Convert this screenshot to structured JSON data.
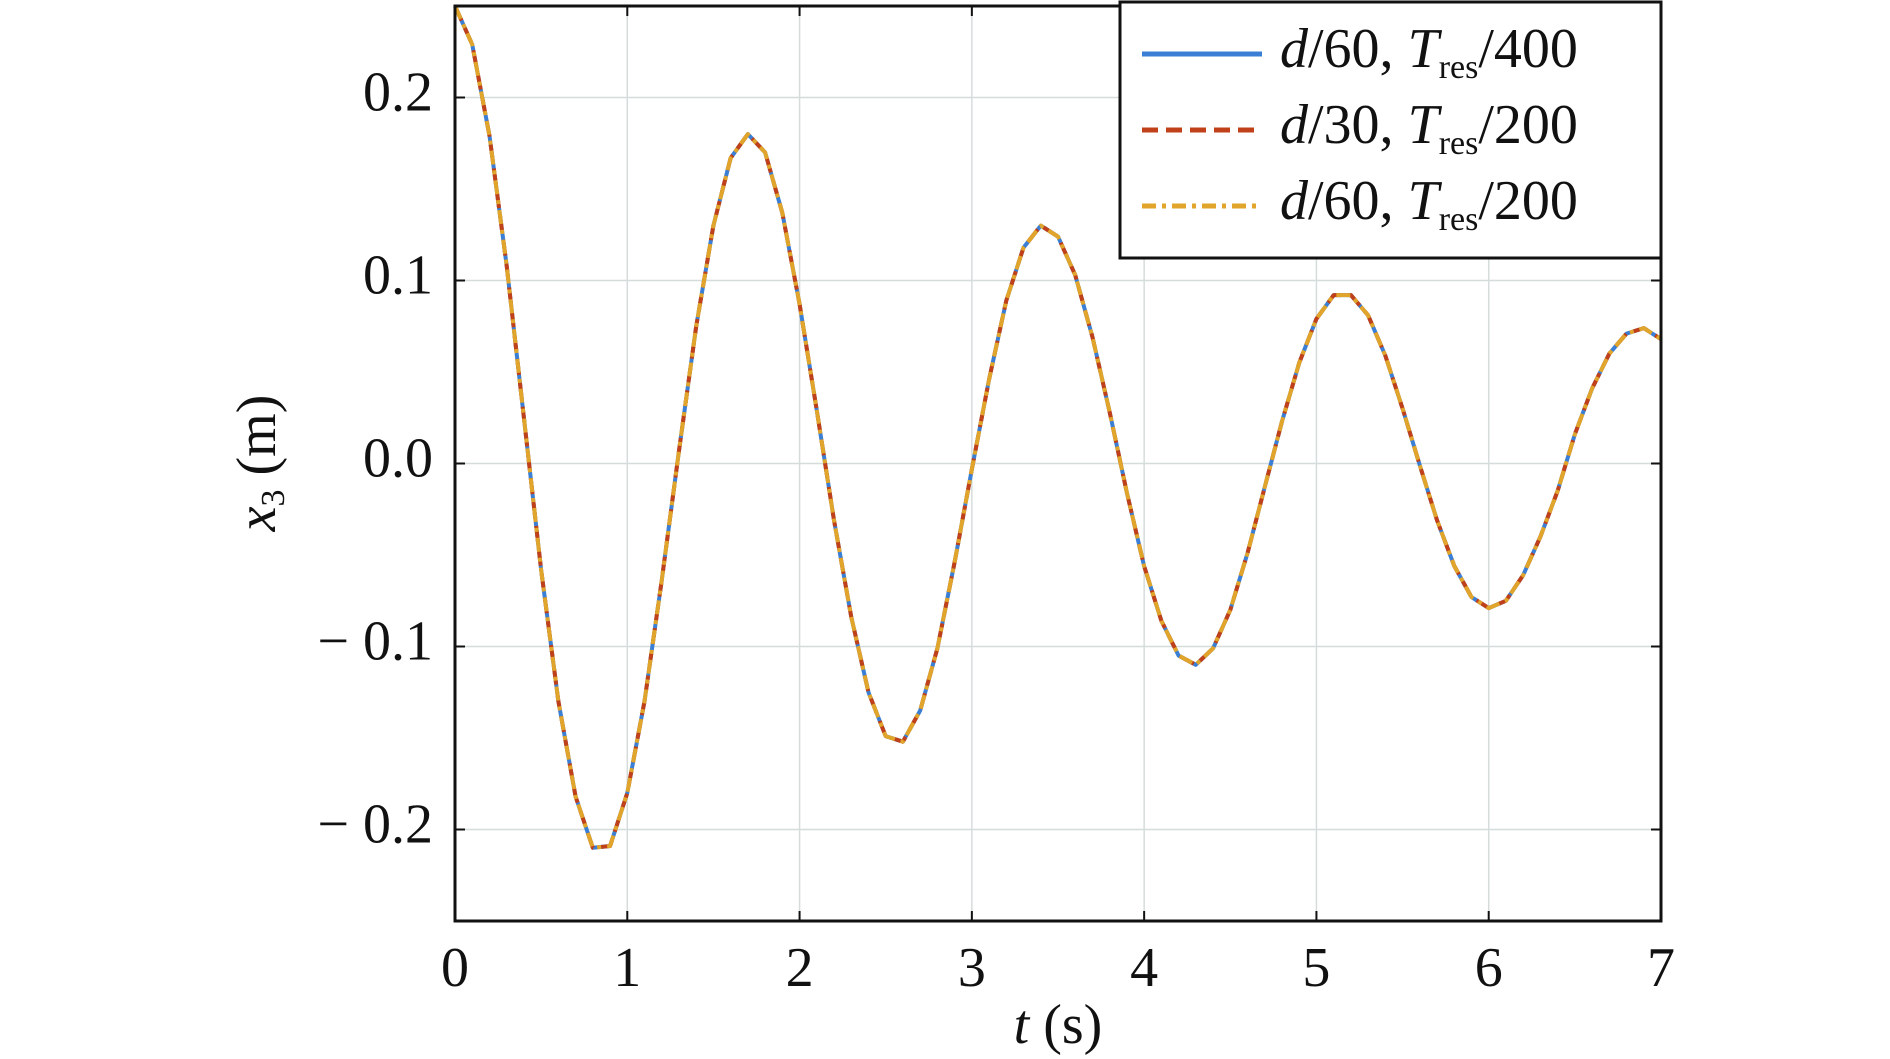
{
  "chart_data": {
    "type": "line",
    "x_label": "t (s)",
    "y_label": "x3 (m)",
    "x": [
      0,
      0.1,
      0.2,
      0.3,
      0.4,
      0.5,
      0.6,
      0.7,
      0.8,
      0.9,
      1,
      1.1,
      1.2,
      1.3,
      1.4,
      1.5,
      1.6,
      1.7,
      1.8,
      1.9,
      2,
      2.1,
      2.2,
      2.3,
      2.4,
      2.5,
      2.6,
      2.7,
      2.8,
      2.9,
      3,
      3.1,
      3.2,
      3.3,
      3.4,
      3.5,
      3.6,
      3.7,
      3.8,
      3.9,
      4,
      4.1,
      4.2,
      4.3,
      4.4,
      4.5,
      4.6,
      4.7,
      4.8,
      4.9,
      5,
      5.1,
      5.2,
      5.3,
      5.4,
      5.5,
      5.6,
      5.7,
      5.8,
      5.9,
      6,
      6.1,
      6.2,
      6.3,
      6.4,
      6.5,
      6.6,
      6.7,
      6.8,
      6.9,
      7
    ],
    "series": [
      {
        "name": "d/60, Tres/400",
        "color": "#3a7fd5",
        "dash": "solid",
        "values": [
          0.25,
          0.229,
          0.179,
          0.108,
          0.025,
          -0.058,
          -0.13,
          -0.182,
          -0.21,
          -0.209,
          -0.18,
          -0.13,
          -0.064,
          0.007,
          0.075,
          0.13,
          0.167,
          0.18,
          0.17,
          0.137,
          0.087,
          0.029,
          -0.031,
          -0.084,
          -0.125,
          -0.149,
          -0.152,
          -0.135,
          -0.101,
          -0.054,
          -0.003,
          0.046,
          0.089,
          0.118,
          0.13,
          0.124,
          0.103,
          0.069,
          0.028,
          -0.016,
          -0.056,
          -0.086,
          -0.105,
          -0.11,
          -0.101,
          -0.08,
          -0.049,
          -0.013,
          0.023,
          0.055,
          0.079,
          0.092,
          0.092,
          0.081,
          0.059,
          0.03,
          -0.001,
          -0.031,
          -0.056,
          -0.073,
          -0.079,
          -0.075,
          -0.061,
          -0.04,
          -0.015,
          0.016,
          0.041,
          0.06,
          0.071,
          0.074,
          0.068
        ]
      },
      {
        "name": "d/30, Tres/200",
        "color": "#c0401a",
        "dash": "dashed",
        "values": [
          0.25,
          0.229,
          0.179,
          0.108,
          0.025,
          -0.058,
          -0.13,
          -0.182,
          -0.21,
          -0.209,
          -0.18,
          -0.13,
          -0.064,
          0.007,
          0.075,
          0.13,
          0.167,
          0.18,
          0.17,
          0.137,
          0.087,
          0.029,
          -0.031,
          -0.084,
          -0.125,
          -0.149,
          -0.152,
          -0.135,
          -0.101,
          -0.054,
          -0.003,
          0.046,
          0.089,
          0.118,
          0.13,
          0.124,
          0.103,
          0.069,
          0.028,
          -0.016,
          -0.056,
          -0.086,
          -0.105,
          -0.11,
          -0.101,
          -0.08,
          -0.049,
          -0.013,
          0.023,
          0.055,
          0.079,
          0.092,
          0.092,
          0.081,
          0.059,
          0.03,
          -0.001,
          -0.031,
          -0.056,
          -0.073,
          -0.079,
          -0.075,
          -0.061,
          -0.04,
          -0.015,
          0.016,
          0.041,
          0.06,
          0.071,
          0.074,
          0.068
        ]
      },
      {
        "name": "d/60, Tres/200",
        "color": "#e0a52a",
        "dash": "dashdot",
        "values": [
          0.25,
          0.229,
          0.179,
          0.108,
          0.025,
          -0.058,
          -0.13,
          -0.182,
          -0.21,
          -0.209,
          -0.18,
          -0.13,
          -0.064,
          0.007,
          0.075,
          0.13,
          0.167,
          0.18,
          0.17,
          0.137,
          0.087,
          0.029,
          -0.031,
          -0.084,
          -0.125,
          -0.149,
          -0.152,
          -0.135,
          -0.101,
          -0.054,
          -0.003,
          0.046,
          0.089,
          0.118,
          0.13,
          0.124,
          0.103,
          0.069,
          0.028,
          -0.016,
          -0.056,
          -0.086,
          -0.105,
          -0.11,
          -0.101,
          -0.08,
          -0.049,
          -0.013,
          0.023,
          0.055,
          0.079,
          0.092,
          0.092,
          0.081,
          0.059,
          0.03,
          -0.001,
          -0.031,
          -0.056,
          -0.073,
          -0.079,
          -0.075,
          -0.061,
          -0.04,
          -0.015,
          0.016,
          0.041,
          0.06,
          0.071,
          0.074,
          0.068
        ]
      }
    ],
    "xlim": [
      0,
      7
    ],
    "xticks": [
      0,
      1,
      2,
      3,
      4,
      5,
      6,
      7
    ],
    "ylim": [
      -0.25,
      0.25
    ],
    "yticks": [
      {
        "value": -0.2,
        "label": "− 0.2"
      },
      {
        "value": -0.1,
        "label": "− 0.1"
      },
      {
        "value": 0,
        "label": "0.0"
      },
      0.1,
      0.2
    ],
    "grid": true,
    "legend": "upper right"
  }
}
